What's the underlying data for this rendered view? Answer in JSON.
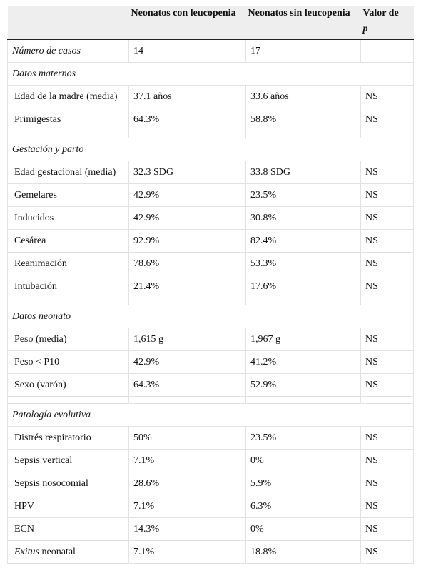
{
  "table": {
    "header": [
      "Neonatos con leucopenia",
      "Neonatos sin leucopenia",
      "Valor de",
      "p"
    ],
    "cases": {
      "label": "Número de casos",
      "values": [
        "14",
        "17"
      ]
    },
    "sections": [
      {
        "title": "Datos maternos",
        "rows": [
          {
            "label": "Edad de la madre (media)",
            "values": [
              "37.1 años",
              "33.6 años",
              "NS"
            ]
          },
          {
            "label": "Primigestas",
            "values": [
              "64.3%",
              "58.8%",
              "NS"
            ]
          }
        ]
      },
      {
        "title": "Gestación y parto",
        "rows": [
          {
            "label": "Edad gestacional (media)",
            "values": [
              "32.3 SDG",
              "33.8 SDG",
              "NS"
            ]
          },
          {
            "label": "Gemelares",
            "values": [
              "42.9%",
              "23.5%",
              "NS"
            ]
          },
          {
            "label": "Inducidos",
            "values": [
              "42.9%",
              "30.8%",
              "NS"
            ]
          },
          {
            "label": "Cesárea",
            "values": [
              "92.9%",
              "82.4%",
              "NS"
            ]
          },
          {
            "label": "Reanimación",
            "values": [
              "78.6%",
              "53.3%",
              "NS"
            ]
          },
          {
            "label": "Intubación",
            "values": [
              "21.4%",
              "17.6%",
              "NS"
            ]
          }
        ]
      },
      {
        "title": "Datos neonato",
        "rows": [
          {
            "label": "Peso (media)",
            "values": [
              "1,615 g",
              "1,967 g",
              "NS"
            ]
          },
          {
            "label": "Peso < P10",
            "values": [
              "42.9%",
              "41.2%",
              "NS"
            ]
          },
          {
            "label": "Sexo (varón)",
            "values": [
              "64.3%",
              "52.9%",
              "NS"
            ]
          }
        ]
      },
      {
        "title": "Patología evolutiva",
        "rows": [
          {
            "label": "Distrés respiratorio",
            "values": [
              "50%",
              "23.5%",
              "NS"
            ]
          },
          {
            "label": "Sepsis vertical",
            "values": [
              "7.1%",
              "0%",
              "NS"
            ]
          },
          {
            "label": "Sepsis nosocomial",
            "values": [
              "28.6%",
              "5.9%",
              "NS"
            ]
          },
          {
            "label": "HPV",
            "values": [
              "7.1%",
              "6.3%",
              "NS"
            ]
          },
          {
            "label": "ECN",
            "values": [
              "14.3%",
              "0%",
              "NS"
            ]
          },
          {
            "label_em": "Exitus",
            "label": "neonatal",
            "values": [
              "7.1%",
              "18.8%",
              "NS"
            ]
          }
        ]
      }
    ]
  }
}
